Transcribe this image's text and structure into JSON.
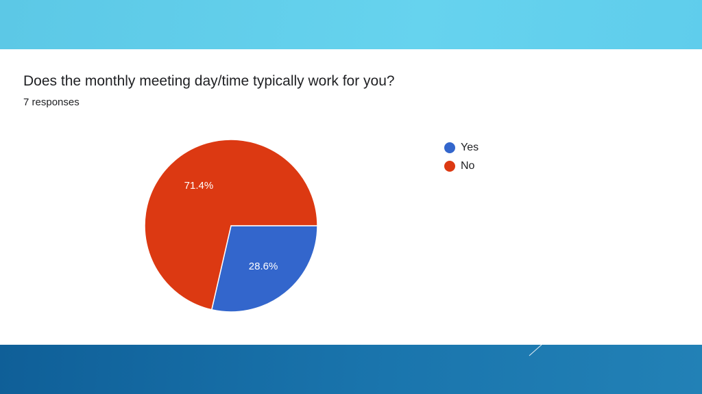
{
  "chart_data": {
    "type": "pie",
    "title": "Does the monthly meeting day/time typically work for you?",
    "subtitle": "7 responses",
    "legend_position": "right",
    "slices": [
      {
        "name": "Yes",
        "value": 28.6,
        "label": "28.6%",
        "color": "#3366cc"
      },
      {
        "name": "No",
        "value": 71.4,
        "label": "71.4%",
        "color": "#dc3912"
      }
    ]
  }
}
